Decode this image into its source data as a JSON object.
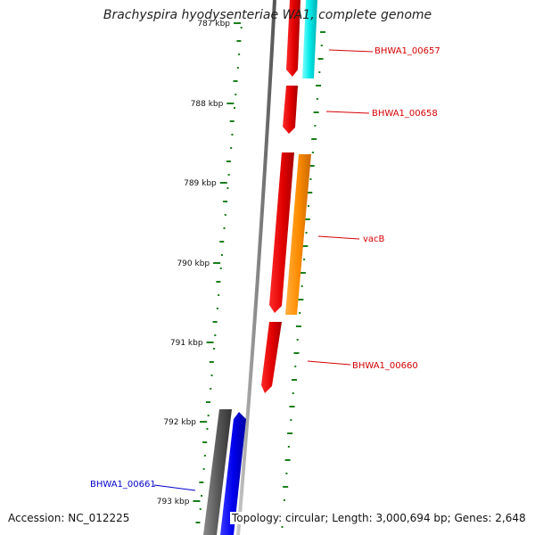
{
  "title": "Brachyspira hyodysenteriae WA1, complete genome",
  "footer": {
    "accession": "Accession: NC_012225",
    "summary": "Topology: circular; Length: 3,000,694 bp; Genes: 2,648"
  },
  "ruler": {
    "unit": "kbp",
    "ticks": [
      "787 kbp",
      "788 kbp",
      "789 kbp",
      "790 kbp",
      "791 kbp",
      "792 kbp",
      "793 kbp"
    ]
  },
  "genes": [
    {
      "name": "BHWA1_00657",
      "color": "#d40000"
    },
    {
      "name": "BHWA1_00658",
      "color": "#d40000"
    },
    {
      "name": "vacB",
      "color": "#d40000"
    },
    {
      "name": "BHWA1_00660",
      "color": "#d40000"
    },
    {
      "name": "BHWA1_00661",
      "color": "#0000cc"
    }
  ],
  "colors": {
    "forward_strand": "#ff0000",
    "reverse_strand": "#0000ff",
    "cyan_feature": "#00ffff",
    "orange_feature": "#ff8c00",
    "gray_feature": "#555555",
    "backbone": "#888888",
    "gc_ticks": "#1a7f1a"
  }
}
